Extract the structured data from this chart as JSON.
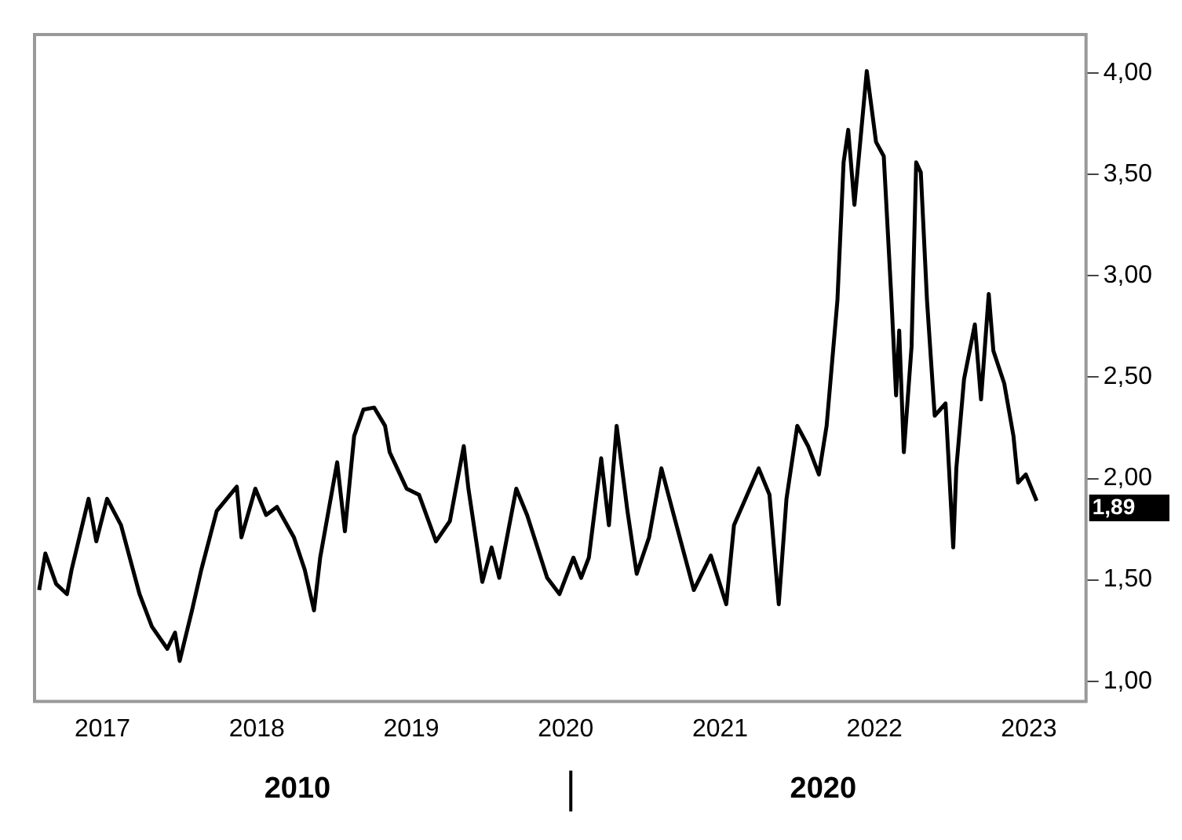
{
  "chart_data": {
    "type": "line",
    "color": "#000000",
    "x": [
      2016.59,
      2016.63,
      2016.7,
      2016.77,
      2016.8,
      2016.91,
      2016.96,
      2017.03,
      2017.12,
      2017.24,
      2017.32,
      2017.42,
      2017.47,
      2017.5,
      2017.58,
      2017.64,
      2017.74,
      2017.87,
      2017.9,
      2017.99,
      2018.06,
      2018.13,
      2018.24,
      2018.31,
      2018.37,
      2018.41,
      2018.52,
      2018.57,
      2018.63,
      2018.69,
      2018.76,
      2018.83,
      2018.86,
      2018.97,
      2019.05,
      2019.16,
      2019.25,
      2019.34,
      2019.37,
      2019.46,
      2019.52,
      2019.57,
      2019.68,
      2019.75,
      2019.88,
      2019.96,
      2020.05,
      2020.1,
      2020.15,
      2020.23,
      2020.28,
      2020.33,
      2020.4,
      2020.46,
      2020.54,
      2020.62,
      2020.7,
      2020.83,
      2020.94,
      2021.04,
      2021.09,
      2021.25,
      2021.32,
      2021.38,
      2021.43,
      2021.5,
      2021.57,
      2021.64,
      2021.69,
      2021.76,
      2021.8,
      2021.83,
      2021.87,
      2021.95,
      2022.01,
      2022.06,
      2022.11,
      2022.14,
      2022.16,
      2022.19,
      2022.24,
      2022.27,
      2022.3,
      2022.34,
      2022.39,
      2022.46,
      2022.51,
      2022.53,
      2022.58,
      2022.65,
      2022.69,
      2022.74,
      2022.77,
      2022.84,
      2022.9,
      2022.93,
      2022.98,
      2023.05
    ],
    "values": [
      1.45,
      1.63,
      1.48,
      1.43,
      1.55,
      1.9,
      1.69,
      1.9,
      1.77,
      1.43,
      1.27,
      1.16,
      1.24,
      1.1,
      1.35,
      1.55,
      1.84,
      1.96,
      1.71,
      1.95,
      1.82,
      1.86,
      1.71,
      1.55,
      1.35,
      1.61,
      2.08,
      1.74,
      2.21,
      2.34,
      2.35,
      2.26,
      2.13,
      1.95,
      1.92,
      1.69,
      1.79,
      2.16,
      1.95,
      1.49,
      1.66,
      1.51,
      1.95,
      1.82,
      1.51,
      1.43,
      1.61,
      1.51,
      1.61,
      2.1,
      1.77,
      2.26,
      1.84,
      1.53,
      1.71,
      2.05,
      1.82,
      1.45,
      1.62,
      1.38,
      1.77,
      2.05,
      1.92,
      1.38,
      1.9,
      2.26,
      2.16,
      2.02,
      2.26,
      2.88,
      3.56,
      3.72,
      3.35,
      4.01,
      3.66,
      3.59,
      2.88,
      2.41,
      2.73,
      2.13,
      2.65,
      3.56,
      3.51,
      2.88,
      2.31,
      2.37,
      1.66,
      2.05,
      2.49,
      2.76,
      2.39,
      2.91,
      2.63,
      2.47,
      2.21,
      1.98,
      2.02,
      1.89
    ],
    "xlim": [
      2016.56,
      2023.37
    ],
    "xticks": [
      2017,
      2018,
      2019,
      2020,
      2021,
      2022,
      2023
    ],
    "ylim": [
      0.9,
      4.19
    ],
    "yticks": [
      {
        "value": 1,
        "label": "1,00"
      },
      {
        "value": 1.5,
        "label": "1,50"
      },
      {
        "value": 2,
        "label": "2,00"
      },
      {
        "value": 2.5,
        "label": "2,50"
      },
      {
        "value": 3,
        "label": "3,00"
      },
      {
        "value": 3.5,
        "label": "3,50"
      },
      {
        "value": 4,
        "label": "4,00"
      }
    ],
    "grid": false,
    "legend": false,
    "marker": "none",
    "line_style": "solid",
    "annotations": [
      "2010",
      "2020",
      "1,89"
    ]
  }
}
